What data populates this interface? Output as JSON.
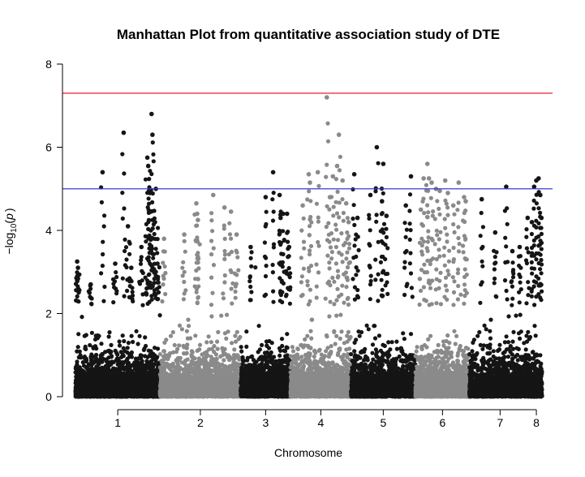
{
  "chart_data": {
    "type": "scatter",
    "title": "Manhattan Plot from quantitative association study of DTE",
    "xlabel": "Chromosome",
    "ylabel_prefix": "−log",
    "ylabel_sub": "10",
    "ylabel_paren_open": "(",
    "ylabel_var": "p",
    "ylabel_paren_close": ")",
    "ylim": [
      0,
      8
    ],
    "yticks": [
      "0",
      "2",
      "4",
      "6",
      "8"
    ],
    "grid": false,
    "thresholds": [
      {
        "value": 7.3,
        "color": "#e8222a"
      },
      {
        "value": 5.0,
        "color": "#3b3bd6"
      }
    ],
    "point_colors": [
      "#151515",
      "#8a8a8a"
    ],
    "chromosomes": [
      {
        "label": "1",
        "start": 0,
        "end": 105,
        "color_index": 0,
        "peaks": [
          [
            0.02,
            3.25
          ],
          [
            0.03,
            3.1
          ],
          [
            0.18,
            2.7
          ],
          [
            0.32,
            5.4
          ],
          [
            0.47,
            3.2
          ],
          [
            0.57,
            6.35
          ],
          [
            0.62,
            4.1
          ],
          [
            0.66,
            3.1
          ],
          [
            0.78,
            3.6
          ],
          [
            0.85,
            5.75
          ],
          [
            0.86,
            5.55
          ],
          [
            0.87,
            4.95
          ],
          [
            0.88,
            4.9
          ],
          [
            0.89,
            4.45
          ],
          [
            0.9,
            6.8
          ],
          [
            0.91,
            6.3
          ],
          [
            0.94,
            4.2
          ],
          [
            0.95,
            5.0
          ],
          [
            0.97,
            3.2
          ]
        ]
      },
      {
        "label": "2",
        "start": 105,
        "end": 205,
        "color_index": 1,
        "peaks": [
          [
            0.05,
            3.8
          ],
          [
            0.3,
            3.9
          ],
          [
            0.45,
            4.65
          ],
          [
            0.46,
            4.4
          ],
          [
            0.47,
            4.25
          ],
          [
            0.66,
            4.85
          ],
          [
            0.8,
            4.55
          ],
          [
            0.88,
            4.45
          ],
          [
            0.95,
            3.9
          ]
        ]
      },
      {
        "label": "3",
        "start": 205,
        "end": 267,
        "color_index": 0,
        "peaks": [
          [
            0.2,
            3.6
          ],
          [
            0.5,
            4.8
          ],
          [
            0.65,
            5.4
          ],
          [
            0.78,
            4.85
          ],
          [
            0.8,
            4.3
          ],
          [
            0.85,
            4.4
          ],
          [
            0.93,
            4.4
          ],
          [
            0.97,
            3.6
          ]
        ]
      },
      {
        "label": "4",
        "start": 267,
        "end": 342,
        "color_index": 1,
        "peaks": [
          [
            0.2,
            4.6
          ],
          [
            0.3,
            5.35
          ],
          [
            0.32,
            5.15
          ],
          [
            0.45,
            5.4
          ],
          [
            0.6,
            7.2
          ],
          [
            0.65,
            4.8
          ],
          [
            0.7,
            5.3
          ],
          [
            0.77,
            5.55
          ],
          [
            0.8,
            6.3
          ],
          [
            0.86,
            5.2
          ],
          [
            0.92,
            4.65
          ],
          [
            0.96,
            4.2
          ]
        ]
      },
      {
        "label": "5",
        "start": 342,
        "end": 422,
        "color_index": 0,
        "peaks": [
          [
            0.05,
            5.35
          ],
          [
            0.1,
            4.3
          ],
          [
            0.3,
            4.85
          ],
          [
            0.4,
            6.0
          ],
          [
            0.48,
            4.7
          ],
          [
            0.5,
            5.6
          ],
          [
            0.55,
            4.35
          ],
          [
            0.85,
            4.6
          ],
          [
            0.93,
            5.3
          ]
        ]
      },
      {
        "label": "6",
        "start": 422,
        "end": 489,
        "color_index": 1,
        "peaks": [
          [
            0.1,
            4.5
          ],
          [
            0.15,
            5.25
          ],
          [
            0.22,
            5.6
          ],
          [
            0.25,
            5.25
          ],
          [
            0.3,
            5.15
          ],
          [
            0.38,
            5.0
          ],
          [
            0.45,
            4.95
          ],
          [
            0.55,
            5.2
          ],
          [
            0.6,
            4.9
          ],
          [
            0.7,
            4.6
          ],
          [
            0.8,
            5.15
          ],
          [
            0.9,
            4.8
          ],
          [
            0.93,
            4.7
          ]
        ]
      },
      {
        "label": "7",
        "start": 489,
        "end": 565,
        "color_index": 0,
        "peaks": [
          [
            0.2,
            4.75
          ],
          [
            0.42,
            3.95
          ],
          [
            0.6,
            5.05
          ],
          [
            0.7,
            3.5
          ],
          [
            0.82,
            3.6
          ],
          [
            0.95,
            4.3
          ]
        ]
      },
      {
        "label": "8",
        "start": 565,
        "end": 579,
        "color_index": 0,
        "peaks": [
          [
            0.1,
            4.2
          ],
          [
            0.3,
            5.05
          ],
          [
            0.5,
            5.2
          ],
          [
            0.7,
            5.25
          ],
          [
            0.85,
            4.85
          ],
          [
            0.95,
            4.3
          ]
        ]
      }
    ]
  }
}
